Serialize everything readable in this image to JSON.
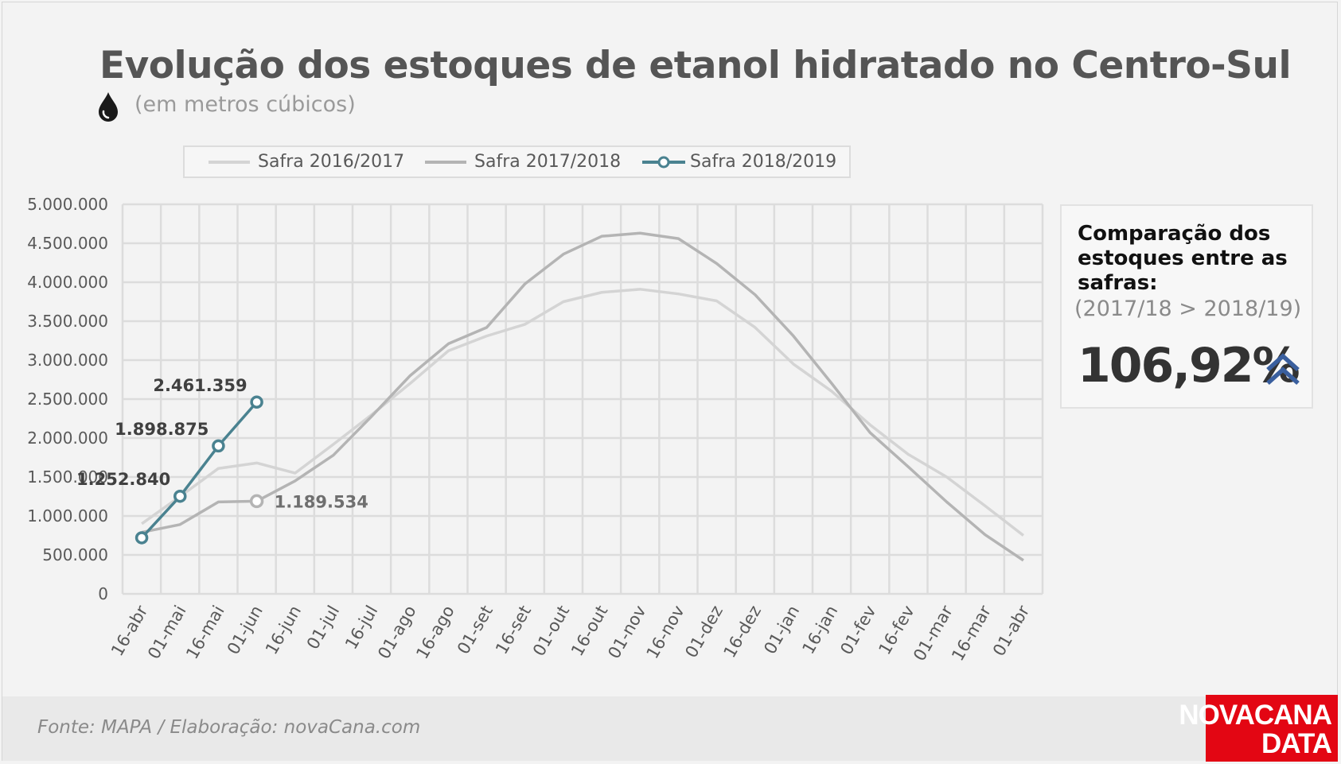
{
  "title": "Evolução dos estoques de etanol hidratado no Centro-Sul",
  "subtitle": "(em metros cúbicos)",
  "icons": {
    "subtitle_icon": "drop-icon",
    "trend_icon": "double-chevron-up-icon"
  },
  "colors": {
    "safra_2016": "#d4d4d4",
    "safra_2017": "#b4b4b4",
    "safra_2018": "#4a8290",
    "grid": "#dcdcdc",
    "arrow": "#3a5f9e",
    "brand_red": "#e30613"
  },
  "comparison": {
    "title": "Comparação dos estoques entre as safras:",
    "subtitle": "(2017/18 > 2018/19)",
    "value": "106,92%"
  },
  "footer": {
    "source": "Fonte: MAPA  / Elaboração: novaCana.com"
  },
  "logo": {
    "line1": "NOVACANA",
    "line2": "DATA"
  },
  "chart_data": {
    "type": "line",
    "title": "Evolução dos estoques de etanol hidratado no Centro-Sul",
    "subtitle": "(em metros cúbicos)",
    "ylim": [
      0,
      5000000
    ],
    "y_ticks": [
      0,
      500000,
      1000000,
      1500000,
      2000000,
      2500000,
      3000000,
      3500000,
      4000000,
      4500000,
      5000000
    ],
    "y_tick_labels": [
      "0",
      "500.000",
      "1.000.000",
      "1.500.000",
      "2.000.000",
      "2.500.000",
      "3.000.000",
      "3.500.000",
      "4.000.000",
      "4.500.000",
      "5.000.000"
    ],
    "grid": true,
    "legend_position": "top",
    "categories": [
      "16-abr",
      "01-mai",
      "16-mai",
      "01-jun",
      "16-jun",
      "01-jul",
      "16-jul",
      "01-ago",
      "16-ago",
      "01-set",
      "16-set",
      "01-out",
      "16-out",
      "01-nov",
      "16-nov",
      "01-dez",
      "16-dez",
      "01-jan",
      "16-jan",
      "01-fev",
      "16-fev",
      "01-mar",
      "16-mar",
      "01-abr"
    ],
    "series": [
      {
        "name": "Safra 2016/2017",
        "values": [
          900000,
          1250000,
          1610000,
          1680000,
          1550000,
          1920000,
          2300000,
          2700000,
          3120000,
          3310000,
          3460000,
          3750000,
          3870000,
          3910000,
          3850000,
          3760000,
          3420000,
          2950000,
          2600000,
          2170000,
          1790000,
          1500000,
          1130000,
          750000
        ]
      },
      {
        "name": "Safra 2017/2018",
        "values": [
          790000,
          890000,
          1180000,
          1189534,
          1450000,
          1780000,
          2280000,
          2800000,
          3210000,
          3420000,
          3980000,
          4360000,
          4590000,
          4630000,
          4560000,
          4240000,
          3840000,
          3310000,
          2700000,
          2070000,
          1630000,
          1180000,
          760000,
          430000
        ]
      },
      {
        "name": "Safra 2018/2019",
        "values": [
          720000,
          1252840,
          1898875,
          2461359,
          null,
          null,
          null,
          null,
          null,
          null,
          null,
          null,
          null,
          null,
          null,
          null,
          null,
          null,
          null,
          null,
          null,
          null,
          null,
          null
        ]
      }
    ],
    "annotations": [
      {
        "series": "Safra 2018/2019",
        "category": "01-mai",
        "label": "1.252.840"
      },
      {
        "series": "Safra 2018/2019",
        "category": "16-mai",
        "label": "1.898.875"
      },
      {
        "series": "Safra 2018/2019",
        "category": "01-jun",
        "label": "2.461.359"
      },
      {
        "series": "Safra 2017/2018",
        "category": "01-jun",
        "label": "1.189.534"
      }
    ]
  }
}
